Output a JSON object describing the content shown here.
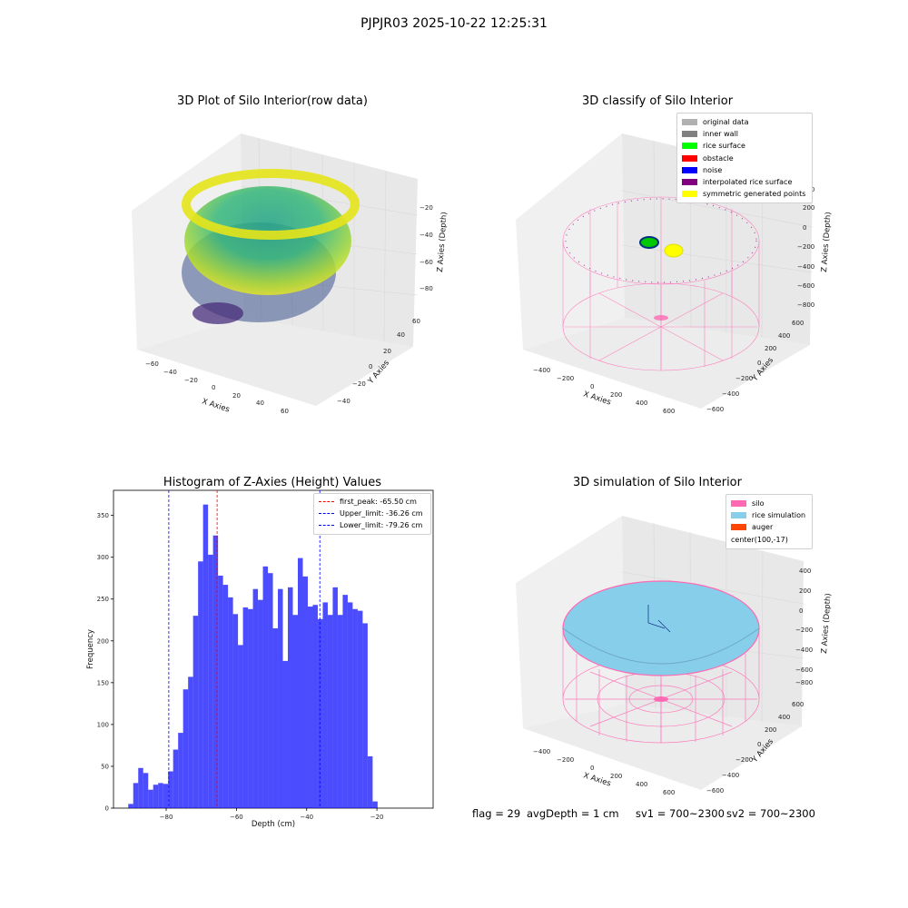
{
  "suptitle": "PJPJR03 2025-10-22 12:25:31",
  "panels": {
    "raw": {
      "title": "3D Plot of Silo Interior(row data)",
      "xlabel": "X Axies",
      "ylabel": "Y Axies",
      "zlabel": "Z Axies (Depth)",
      "xticks": [
        "−60",
        "−40",
        "−20",
        "0",
        "20",
        "40",
        "60"
      ],
      "yticks": [
        "−40",
        "−20",
        "0",
        "20",
        "40",
        "60"
      ],
      "zticks": [
        "−20",
        "−40",
        "−60",
        "−80"
      ]
    },
    "classify": {
      "title": "3D classify of Silo Interior",
      "xlabel": "X Axies",
      "ylabel": "Y Axies",
      "zlabel": "Z Axies (Depth)",
      "xticks": [
        "−400",
        "−200",
        "0",
        "200",
        "400",
        "600"
      ],
      "yticks": [
        "−600",
        "−400",
        "−200",
        "0",
        "200",
        "400",
        "600"
      ],
      "zticks": [
        "200",
        "0",
        "−200",
        "−400",
        "−600",
        "−800"
      ],
      "legend": [
        {
          "label": "original data",
          "color": "#b0b0b0"
        },
        {
          "label": "inner wall",
          "color": "#808080"
        },
        {
          "label": "rice surface",
          "color": "#00ff00"
        },
        {
          "label": "obstacle",
          "color": "#ff0000"
        },
        {
          "label": "noise",
          "color": "#0000ff"
        },
        {
          "label": "interpolated rice surface",
          "color": "#800080"
        },
        {
          "label": "symmetric generated points",
          "color": "#ffff00"
        }
      ]
    },
    "simulation": {
      "title": "3D simulation of Silo Interior",
      "xlabel": "X Axies",
      "ylabel": "Y Axies",
      "zlabel": "Z Axies (Depth)",
      "xticks": [
        "−400",
        "−200",
        "0",
        "200",
        "400",
        "600"
      ],
      "yticks": [
        "−600",
        "−400",
        "−200",
        "0",
        "200",
        "400",
        "600"
      ],
      "zticks": [
        "400",
        "200",
        "0",
        "−200",
        "−400",
        "−600",
        "−800"
      ],
      "legend": [
        {
          "label": "silo",
          "color": "#ff69b4"
        },
        {
          "label": "rice simulation",
          "color": "#87ceeb"
        },
        {
          "label": "auger",
          "color": "#ff4500"
        },
        {
          "label": "center(100,-17)",
          "color": ""
        }
      ]
    }
  },
  "footer": {
    "flag": "flag = 29",
    "avg": "avgDepth = 1 cm",
    "sv1": "sv1 = 700~2300",
    "sv2": "sv2 = 700~2300"
  },
  "chart_data": {
    "type": "bar",
    "title": "Histogram of Z-Axies (Height) Values",
    "xlabel": "Depth (cm)",
    "ylabel": "Frequency",
    "xlim": [
      -95,
      -4
    ],
    "ylim": [
      0,
      380
    ],
    "xticks": [
      -80,
      -60,
      -40,
      -20
    ],
    "yticks": [
      0,
      50,
      100,
      150,
      200,
      250,
      300,
      350
    ],
    "bar_color": "#0000ff",
    "bin_start": -90.8,
    "bin_width": 1.42,
    "values": [
      5,
      30,
      48,
      42,
      22,
      28,
      30,
      29,
      44,
      70,
      90,
      142,
      157,
      230,
      295,
      363,
      303,
      326,
      278,
      267,
      252,
      232,
      195,
      240,
      238,
      262,
      249,
      289,
      281,
      215,
      262,
      176,
      264,
      231,
      299,
      277,
      241,
      243,
      226,
      246,
      231,
      264,
      231,
      255,
      246,
      238,
      236,
      221,
      62,
      8
    ],
    "vlines": [
      {
        "label": "first_peak: -65.50 cm",
        "x": -65.5,
        "color": "#ff0000"
      },
      {
        "label": "Upper_limit: -36.26 cm",
        "x": -36.26,
        "color": "#0000ff"
      },
      {
        "label": "Lower_limit: -79.26 cm",
        "x": -79.26,
        "color": "#0000ff"
      }
    ],
    "legend_position": "top-right"
  }
}
